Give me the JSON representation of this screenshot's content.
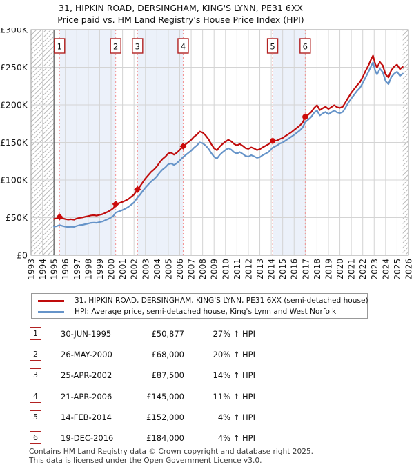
{
  "page": {
    "title_line1": "31, HIPKIN ROAD, DERSINGHAM, KING'S LYNN, PE31 6XX",
    "title_line2": "Price paid vs. HM Land Registry's House Price Index (HPI)"
  },
  "chart_data": {
    "type": "line",
    "title": "31, HIPKIN ROAD, DERSINGHAM, KING'S LYNN, PE31 6XX",
    "subtitle": "Price paid vs. HM Land Registry's House Price Index (HPI)",
    "units": "GBP thousands",
    "xlim_years": [
      1993,
      2026
    ],
    "ylim_gbp": [
      0,
      300000
    ],
    "grid": true,
    "legend_position": "below",
    "y_ticks": [
      {
        "v": 0,
        "label": "£0"
      },
      {
        "v": 50000,
        "label": "£50K"
      },
      {
        "v": 100000,
        "label": "£100K"
      },
      {
        "v": 150000,
        "label": "£150K"
      },
      {
        "v": 200000,
        "label": "£200K"
      },
      {
        "v": 250000,
        "label": "£250K"
      },
      {
        "v": 300000,
        "label": "£300K"
      }
    ],
    "x_tick_years": [
      1993,
      1994,
      1995,
      1996,
      1997,
      1998,
      1999,
      2000,
      2001,
      2002,
      2003,
      2004,
      2005,
      2006,
      2007,
      2008,
      2009,
      2010,
      2011,
      2012,
      2013,
      2014,
      2015,
      2016,
      2017,
      2018,
      2019,
      2020,
      2021,
      2022,
      2023,
      2024,
      2025,
      2026
    ],
    "x": [
      1995.0,
      1995.25,
      1995.49,
      1995.75,
      1996.0,
      1996.25,
      1996.5,
      1996.75,
      1997.0,
      1997.25,
      1997.5,
      1997.75,
      1998.0,
      1998.25,
      1998.5,
      1998.75,
      1999.0,
      1999.25,
      1999.5,
      1999.75,
      2000.0,
      2000.2,
      2000.4,
      2000.75,
      2001.0,
      2001.25,
      2001.5,
      2001.75,
      2002.0,
      2002.31,
      2002.5,
      2002.75,
      2003.0,
      2003.25,
      2003.5,
      2003.75,
      2004.0,
      2004.25,
      2004.5,
      2004.75,
      2005.0,
      2005.25,
      2005.5,
      2005.75,
      2006.0,
      2006.3,
      2006.5,
      2006.75,
      2007.0,
      2007.25,
      2007.5,
      2007.75,
      2008.0,
      2008.25,
      2008.5,
      2008.75,
      2009.0,
      2009.25,
      2009.5,
      2009.75,
      2010.0,
      2010.25,
      2010.5,
      2010.75,
      2011.0,
      2011.25,
      2011.5,
      2011.75,
      2012.0,
      2012.25,
      2012.5,
      2012.75,
      2013.0,
      2013.25,
      2013.5,
      2013.75,
      2014.12,
      2014.5,
      2014.75,
      2015.0,
      2015.25,
      2015.5,
      2015.75,
      2016.0,
      2016.25,
      2016.5,
      2016.75,
      2016.97,
      2017.25,
      2017.5,
      2017.75,
      2018.0,
      2018.25,
      2018.5,
      2018.75,
      2019.0,
      2019.25,
      2019.5,
      2019.75,
      2020.0,
      2020.25,
      2020.5,
      2020.75,
      2021.0,
      2021.25,
      2021.5,
      2021.75,
      2022.0,
      2022.25,
      2022.5,
      2022.75,
      2022.9,
      2023.1,
      2023.25,
      2023.5,
      2023.75,
      2024.0,
      2024.25,
      2024.5,
      2024.75,
      2025.0,
      2025.25,
      2025.5
    ],
    "series": [
      {
        "name": "31, HIPKIN ROAD, DERSINGHAM, KING'S LYNN, PE31 6XX (semi-detached house)",
        "color": "#c00c0c",
        "values": [
          48.3,
          49.0,
          50.9,
          49.2,
          48.0,
          47.3,
          47.8,
          47.2,
          48.8,
          49.7,
          50.2,
          51.2,
          52.0,
          52.9,
          53.2,
          52.7,
          53.8,
          54.6,
          56.3,
          58.1,
          60.4,
          62.5,
          68.0,
          69.5,
          70.9,
          72.6,
          74.5,
          77.5,
          80.6,
          87.5,
          91.0,
          96.5,
          102.0,
          106.4,
          110.7,
          114.0,
          118.2,
          123.7,
          128.0,
          131.2,
          135.4,
          136.3,
          133.8,
          136.4,
          140.0,
          145.0,
          147.3,
          150.3,
          153.4,
          157.5,
          160.4,
          164.5,
          163.1,
          159.5,
          154.7,
          147.9,
          142.2,
          139.5,
          144.5,
          148.0,
          151.0,
          153.5,
          151.5,
          148.0,
          146.0,
          148.0,
          145.5,
          142.5,
          141.5,
          143.5,
          142.0,
          139.8,
          141.0,
          143.5,
          145.5,
          147.5,
          152.0,
          152.5,
          154.5,
          156.0,
          158.5,
          161.0,
          163.5,
          166.5,
          169.5,
          172.5,
          176.5,
          184.0,
          187.0,
          190.5,
          196.0,
          199.5,
          193.0,
          195.5,
          197.5,
          194.5,
          197.0,
          199.5,
          197.0,
          196.0,
          197.5,
          203.5,
          210.0,
          216.0,
          221.0,
          226.0,
          230.0,
          237.0,
          245.0,
          252.5,
          261.0,
          265.5,
          254.0,
          249.5,
          257.0,
          252.5,
          240.5,
          236.5,
          246.0,
          251.0,
          253.5,
          247.5,
          250.5
        ]
      },
      {
        "name": "HPI: Average price, semi-detached house, King's Lynn and West Norfolk",
        "color": "#6694c9",
        "values": [
          38.0,
          38.6,
          40.1,
          38.9,
          38.0,
          37.6,
          38.0,
          37.7,
          39.0,
          40.0,
          40.4,
          41.3,
          42.1,
          43.0,
          43.3,
          43.0,
          44.1,
          44.9,
          46.5,
          48.2,
          50.2,
          52.2,
          56.7,
          58.6,
          60.1,
          62.0,
          64.1,
          67.0,
          70.2,
          76.8,
          80.0,
          85.0,
          90.0,
          94.0,
          98.0,
          101.0,
          105.0,
          110.0,
          114.0,
          117.0,
          121.0,
          122.0,
          120.0,
          122.5,
          126.0,
          130.6,
          133.0,
          136.0,
          139.0,
          143.0,
          146.0,
          150.0,
          149.0,
          146.0,
          142.0,
          136.0,
          131.0,
          128.5,
          133.5,
          137.0,
          140.0,
          142.3,
          140.5,
          137.0,
          135.2,
          137.2,
          134.8,
          132.0,
          131.0,
          133.0,
          131.5,
          129.5,
          130.5,
          133.0,
          135.0,
          137.0,
          143.0,
          146.0,
          148.5,
          150.0,
          152.5,
          155.0,
          157.5,
          160.0,
          163.0,
          166.0,
          170.0,
          177.0,
          180.5,
          184.0,
          189.5,
          192.5,
          186.0,
          188.5,
          190.5,
          187.5,
          190.0,
          192.5,
          190.0,
          189.0,
          190.5,
          196.5,
          203.0,
          208.5,
          213.5,
          218.5,
          222.5,
          229.0,
          236.5,
          244.0,
          252.0,
          256.5,
          245.0,
          240.5,
          248.0,
          243.5,
          231.5,
          227.5,
          237.0,
          241.5,
          244.0,
          238.5,
          241.5
        ]
      }
    ],
    "sales": [
      {
        "n": 1,
        "year": 1995.49,
        "price": 50877,
        "marker": "diamond"
      },
      {
        "n": 2,
        "year": 2000.4,
        "price": 68000,
        "marker": "diamond"
      },
      {
        "n": 3,
        "year": 2002.31,
        "price": 87500,
        "marker": "diamond"
      },
      {
        "n": 4,
        "year": 2006.3,
        "price": 145000,
        "marker": "diamond"
      },
      {
        "n": 5,
        "year": 2014.12,
        "price": 152000,
        "marker": "circle"
      },
      {
        "n": 6,
        "year": 2016.97,
        "price": 184000,
        "marker": "circle"
      }
    ],
    "shaded_bands_years": [
      [
        1995.49,
        2000.4
      ],
      [
        2002.31,
        2006.3
      ],
      [
        2014.12,
        2016.97
      ]
    ],
    "hatched_years": [
      [
        1993,
        1995
      ],
      [
        2025.5,
        2026
      ]
    ],
    "hpi_start_line_year": 1995,
    "band_color": "#ecf1fa",
    "dashed_line_color": "#f49090",
    "grid_color": "#d4d4d4",
    "border_color": "#9a9a9a",
    "marker_color": "#cc0a0a"
  },
  "legend": {
    "items": [
      {
        "label": "31, HIPKIN ROAD, DERSINGHAM, KING'S LYNN, PE31 6XX (semi-detached house)",
        "color": "#c00c0c"
      },
      {
        "label": "HPI: Average price, semi-detached house, King's Lynn and West Norfolk",
        "color": "#6694c9"
      }
    ]
  },
  "table": {
    "rows": [
      {
        "num": "1",
        "date": "30-JUN-1995",
        "price": "£50,877",
        "hpi": "27% ↑ HPI"
      },
      {
        "num": "2",
        "date": "26-MAY-2000",
        "price": "£68,000",
        "hpi": "20% ↑ HPI"
      },
      {
        "num": "3",
        "date": "25-APR-2002",
        "price": "£87,500",
        "hpi": "14% ↑ HPI"
      },
      {
        "num": "4",
        "date": "21-APR-2006",
        "price": "£145,000",
        "hpi": "11% ↑ HPI"
      },
      {
        "num": "5",
        "date": "14-FEB-2014",
        "price": "£152,000",
        "hpi": "4% ↑ HPI"
      },
      {
        "num": "6",
        "date": "19-DEC-2016",
        "price": "£184,000",
        "hpi": "4% ↑ HPI"
      }
    ]
  },
  "footer": {
    "line1": "Contains HM Land Registry data © Crown copyright and database right 2025.",
    "line2": "This data is licensed under the Open Government Licence v3.0."
  }
}
